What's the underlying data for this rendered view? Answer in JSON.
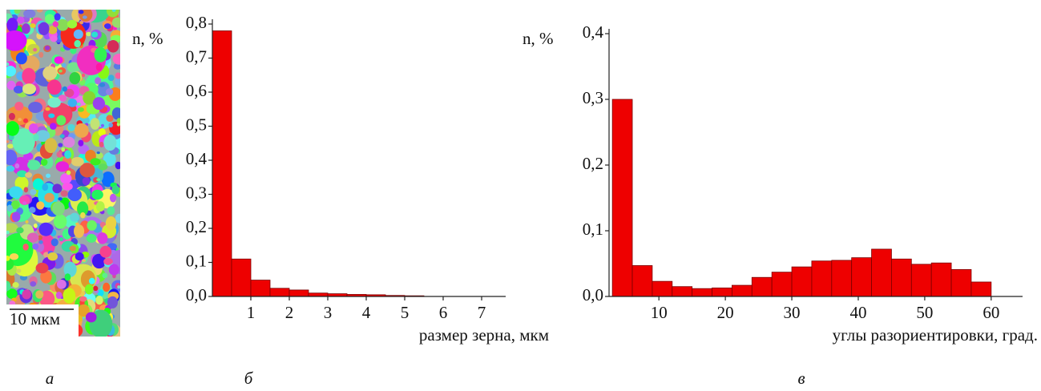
{
  "image_panel": {
    "scale_bar": "10 мкм",
    "panel_label": "а"
  },
  "chart_data": [
    {
      "type": "histogram",
      "panel_label": "б",
      "y_label": "n, %",
      "x_label": "размер зерна, мкм",
      "color": "#ee0000",
      "bins": [
        0,
        0.5,
        1,
        1.5,
        2,
        2.5,
        3,
        3.5,
        4,
        4.5,
        5,
        5.5
      ],
      "values": [
        0.78,
        0.11,
        0.048,
        0.024,
        0.019,
        0.01,
        0.008,
        0.006,
        0.005,
        0.003,
        0.002
      ],
      "xlim": [
        0,
        7.5
      ],
      "xticks": [
        1,
        2,
        3,
        4,
        5,
        6,
        7
      ],
      "ylim": [
        0,
        0.8
      ],
      "yticks": [
        {
          "value": 0,
          "label": "0,0"
        },
        {
          "value": 0.1,
          "label": "0,1"
        },
        {
          "value": 0.2,
          "label": "0,2"
        },
        {
          "value": 0.3,
          "label": "0,3"
        },
        {
          "value": 0.4,
          "label": "0,4"
        },
        {
          "value": 0.5,
          "label": "0,5"
        },
        {
          "value": 0.6,
          "label": "0,6"
        },
        {
          "value": 0.7,
          "label": "0,7"
        },
        {
          "value": 0.8,
          "label": "0,8"
        }
      ]
    },
    {
      "type": "histogram",
      "panel_label": "в",
      "y_label": "n, %",
      "x_label": "углы разориентировки, град.",
      "color": "#ee0000",
      "bins": [
        3,
        6,
        9,
        12,
        15,
        18,
        21,
        24,
        27,
        30,
        33,
        36,
        39,
        42,
        45,
        48,
        51,
        54,
        57,
        60
      ],
      "values": [
        0.3,
        0.047,
        0.023,
        0.015,
        0.012,
        0.013,
        0.017,
        0.029,
        0.037,
        0.045,
        0.054,
        0.055,
        0.059,
        0.072,
        0.057,
        0.049,
        0.051,
        0.041,
        0.022
      ],
      "xlim": [
        2.5,
        64
      ],
      "xticks": [
        10,
        20,
        30,
        40,
        50,
        60
      ],
      "ylim": [
        0,
        0.4
      ],
      "yticks": [
        {
          "value": 0,
          "label": "0,0"
        },
        {
          "value": 0.1,
          "label": "0,1"
        },
        {
          "value": 0.2,
          "label": "0,2"
        },
        {
          "value": 0.3,
          "label": "0,3"
        },
        {
          "value": 0.4,
          "label": "0,4"
        }
      ]
    }
  ]
}
